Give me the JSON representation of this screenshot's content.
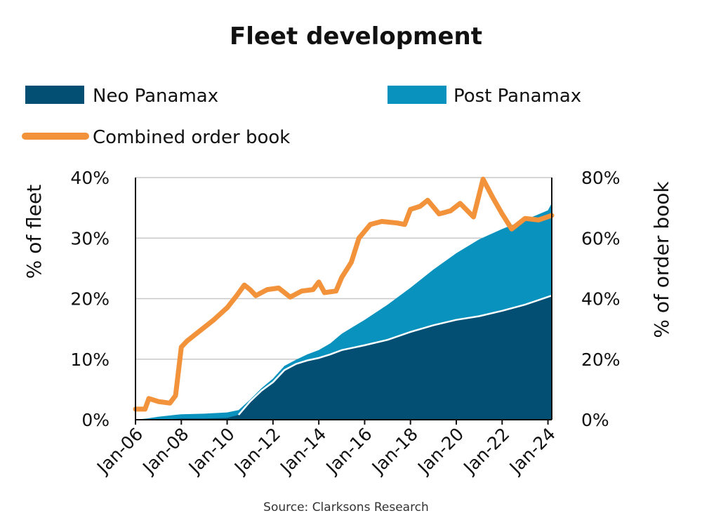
{
  "chart_data": {
    "type": "area",
    "title": "Fleet development",
    "source": "Source: Clarksons Research",
    "ylabel_left": "% of fleet",
    "ylabel_right": "% of order book",
    "x_ticks": [
      "Jan-06",
      "Jan-08",
      "Jan-10",
      "Jan-12",
      "Jan-14",
      "Jan-16",
      "Jan-18",
      "Jan-20",
      "Jan-22",
      "Jan-24"
    ],
    "y_left_ticks": [
      "0%",
      "10%",
      "20%",
      "30%",
      "40%"
    ],
    "y_right_ticks": [
      "0%",
      "20%",
      "40%",
      "60%",
      "80%"
    ],
    "ylim_left": [
      0,
      40
    ],
    "ylim_right": [
      0,
      80
    ],
    "xlim": [
      "2006-01",
      "2024-03"
    ],
    "grid": "horizontal",
    "legend_position": "top",
    "colors": {
      "neo": "#034f73",
      "post": "#0a92bf",
      "orderbook": "#f2923a",
      "divider": "#ffffff",
      "grid": "#c8c8c8",
      "axis": "#111111"
    },
    "series": [
      {
        "name": "Neo Panamax",
        "axis": "left",
        "kind": "area",
        "points": [
          [
            "2006-01",
            0
          ],
          [
            "2007-01",
            0
          ],
          [
            "2008-01",
            0.2
          ],
          [
            "2009-01",
            0.2
          ],
          [
            "2010-01",
            0.3
          ],
          [
            "2010-07",
            0.8
          ],
          [
            "2011-01",
            3.0
          ],
          [
            "2011-07",
            4.8
          ],
          [
            "2012-01",
            6.2
          ],
          [
            "2012-07",
            8.2
          ],
          [
            "2013-01",
            9.2
          ],
          [
            "2013-07",
            9.8
          ],
          [
            "2014-01",
            10.2
          ],
          [
            "2014-07",
            10.8
          ],
          [
            "2015-01",
            11.5
          ],
          [
            "2016-01",
            12.3
          ],
          [
            "2017-01",
            13.2
          ],
          [
            "2018-01",
            14.5
          ],
          [
            "2019-01",
            15.6
          ],
          [
            "2020-01",
            16.5
          ],
          [
            "2021-01",
            17.1
          ],
          [
            "2022-01",
            18.0
          ],
          [
            "2023-01",
            19.0
          ],
          [
            "2024-01",
            20.3
          ],
          [
            "2024-03",
            20.5
          ]
        ]
      },
      {
        "name": "Post Panamax",
        "axis": "left",
        "kind": "stacked-total",
        "points": [
          [
            "2006-01",
            0
          ],
          [
            "2006-07",
            0.2
          ],
          [
            "2007-01",
            0.5
          ],
          [
            "2008-01",
            0.9
          ],
          [
            "2009-01",
            1.0
          ],
          [
            "2010-01",
            1.2
          ],
          [
            "2010-07",
            1.6
          ],
          [
            "2011-01",
            3.3
          ],
          [
            "2011-07",
            5.2
          ],
          [
            "2012-01",
            6.8
          ],
          [
            "2012-07",
            8.9
          ],
          [
            "2013-01",
            9.9
          ],
          [
            "2013-07",
            10.8
          ],
          [
            "2014-01",
            11.5
          ],
          [
            "2014-07",
            12.6
          ],
          [
            "2015-01",
            14.2
          ],
          [
            "2016-01",
            16.5
          ],
          [
            "2017-01",
            19.0
          ],
          [
            "2018-01",
            21.8
          ],
          [
            "2019-01",
            24.8
          ],
          [
            "2020-01",
            27.5
          ],
          [
            "2021-01",
            29.8
          ],
          [
            "2022-01",
            31.5
          ],
          [
            "2023-01",
            33.0
          ],
          [
            "2024-01",
            34.6
          ],
          [
            "2024-03",
            35.8
          ]
        ]
      },
      {
        "name": "Combined order book",
        "axis": "right",
        "kind": "line",
        "points": [
          [
            "2006-01",
            3.5
          ],
          [
            "2006-06",
            3.5
          ],
          [
            "2006-08",
            7.0
          ],
          [
            "2007-01",
            6.0
          ],
          [
            "2007-07",
            5.5
          ],
          [
            "2007-10",
            8.0
          ],
          [
            "2008-01",
            24.0
          ],
          [
            "2008-04",
            26.0
          ],
          [
            "2008-10",
            29.0
          ],
          [
            "2009-06",
            33.0
          ],
          [
            "2010-01",
            37.0
          ],
          [
            "2010-06",
            41.0
          ],
          [
            "2010-10",
            44.5
          ],
          [
            "2011-01",
            43.0
          ],
          [
            "2011-04",
            41.0
          ],
          [
            "2011-10",
            43.0
          ],
          [
            "2012-04",
            43.5
          ],
          [
            "2012-10",
            40.5
          ],
          [
            "2013-04",
            42.5
          ],
          [
            "2013-10",
            43.0
          ],
          [
            "2014-01",
            45.5
          ],
          [
            "2014-04",
            42.0
          ],
          [
            "2014-10",
            42.5
          ],
          [
            "2015-01",
            47.0
          ],
          [
            "2015-06",
            52.0
          ],
          [
            "2015-10",
            60.0
          ],
          [
            "2016-04",
            64.5
          ],
          [
            "2016-10",
            65.5
          ],
          [
            "2017-06",
            65.0
          ],
          [
            "2017-10",
            64.5
          ],
          [
            "2018-01",
            69.5
          ],
          [
            "2018-06",
            70.5
          ],
          [
            "2018-10",
            72.5
          ],
          [
            "2019-04",
            68.0
          ],
          [
            "2019-10",
            69.0
          ],
          [
            "2020-03",
            71.5
          ],
          [
            "2020-10",
            67.0
          ],
          [
            "2021-03",
            79.5
          ],
          [
            "2021-08",
            73.5
          ],
          [
            "2022-01",
            68.0
          ],
          [
            "2022-06",
            63.0
          ],
          [
            "2023-01",
            66.5
          ],
          [
            "2023-08",
            66.0
          ],
          [
            "2024-03",
            67.5
          ]
        ]
      }
    ]
  }
}
